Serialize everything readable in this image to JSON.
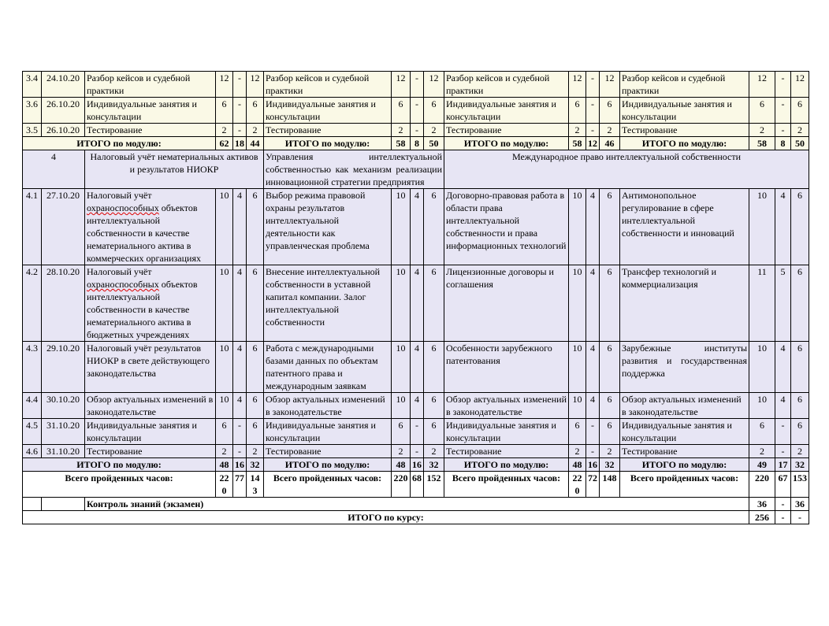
{
  "document": {
    "type": "course-schedule-table",
    "labels": {
      "module_total": "ИТОГО по модулю:",
      "hours_total": "Всего пройденных часов:",
      "exam": "Контроль знаний (экзамен)",
      "course_total": "ИТОГО по курсу:"
    },
    "colors": {
      "cream": "#FAF9E6",
      "lavender": "#E7E5F4",
      "spellcheck": "#DD0000",
      "border": "#000000"
    },
    "module3": {
      "rows": [
        {
          "num": "3.4",
          "date": "24.10.20",
          "groups": [
            {
              "topic": "Разбор кейсов и судебной практики",
              "hours": [
                "12",
                "-",
                "12"
              ]
            },
            {
              "topic": "Разбор кейсов и судебной практики",
              "hours": [
                "12",
                "-",
                "12"
              ]
            },
            {
              "topic": "Разбор кейсов и судебной практики",
              "hours": [
                "12",
                "-",
                "12"
              ]
            },
            {
              "topic": "Разбор кейсов и судебной практики",
              "hours": [
                "12",
                "-",
                "12"
              ]
            }
          ]
        },
        {
          "num": "3.6",
          "date": "26.10.20",
          "groups": [
            {
              "topic": "Индивидуальные занятия и консультации",
              "hours": [
                "6",
                "-",
                "6"
              ]
            },
            {
              "topic": "Индивидуальные занятия и консультации",
              "hours": [
                "6",
                "-",
                "6"
              ]
            },
            {
              "topic": "Индивидуальные занятия и консультации",
              "hours": [
                "6",
                "-",
                "6"
              ]
            },
            {
              "topic": "Индивидуальные занятия и консультации",
              "hours": [
                "6",
                "-",
                "6"
              ]
            }
          ]
        },
        {
          "num": "3.5",
          "date": "26.10.20",
          "groups": [
            {
              "topic": "Тестирование",
              "hours": [
                "2",
                "-",
                "2"
              ]
            },
            {
              "topic": "Тестирование",
              "hours": [
                "2",
                "-",
                "2"
              ]
            },
            {
              "topic": "Тестирование",
              "hours": [
                "2",
                "-",
                "2"
              ]
            },
            {
              "topic": "Тестирование",
              "hours": [
                "2",
                "-",
                "2"
              ]
            }
          ]
        }
      ],
      "totals": [
        [
          "62",
          "18",
          "44"
        ],
        [
          "58",
          "8",
          "50"
        ],
        [
          "58",
          "12",
          "46"
        ],
        [
          "58",
          "8",
          "50"
        ]
      ]
    },
    "module4": {
      "number": "4",
      "titles": [
        {
          "text": "Налоговый учёт нематериальных активов и результатов НИОКР",
          "align": "center"
        },
        {
          "text": "Управления интеллектуальной собственностью как механизм реализации инновационной стратегии предприятия",
          "align": "justify"
        },
        {
          "text": "Международное право интеллектуальной собственности",
          "align": "center"
        }
      ],
      "rows": [
        {
          "num": "4.1",
          "date": "27.10.20",
          "groups": [
            {
              "topic": "Налоговый учёт охраноспособных объектов интеллектуальной собственности в качестве нематериального актива в коммерческих организациях",
              "misspelled": "охраноспособных",
              "hours": [
                "10",
                "4",
                "6"
              ]
            },
            {
              "topic": "Выбор режима правовой охраны результатов интеллектуальной деятельности как управленческая проблема",
              "hours": [
                "10",
                "4",
                "6"
              ]
            },
            {
              "topic": "Договорно-правовая работа в области права интеллектуальной собственности и права информационных технологий",
              "hours": [
                "10",
                "4",
                "6"
              ]
            },
            {
              "topic": "Антимонопольное регулирование в сфере интеллектуальной собственности и инноваций",
              "hours": [
                "10",
                "4",
                "6"
              ]
            }
          ]
        },
        {
          "num": "4.2",
          "date": "28.10.20",
          "groups": [
            {
              "topic": "Налоговый учёт охраноспособных объектов интеллектуальной собственности в качестве нематериального актива в бюджетных учреждениях",
              "misspelled": "охраноспособных",
              "hours": [
                "10",
                "4",
                "6"
              ]
            },
            {
              "topic": "Внесение интеллектуальной собственности в уставной капитал компании. Залог интеллектуальной собственности",
              "hours": [
                "10",
                "4",
                "6"
              ]
            },
            {
              "topic": "Лицензионные договоры и соглашения",
              "hours": [
                "10",
                "4",
                "6"
              ]
            },
            {
              "topic": "Трансфер технологий и коммерциализация",
              "hours": [
                "11",
                "5",
                "6"
              ]
            }
          ]
        },
        {
          "num": "4.3",
          "date": "29.10.20",
          "groups": [
            {
              "topic": "Налоговый учёт результатов НИОКР в свете действующего законодательства",
              "hours": [
                "10",
                "4",
                "6"
              ]
            },
            {
              "topic": "Работа с международными базами данных по объектам патентного права и международным заявкам",
              "hours": [
                "10",
                "4",
                "6"
              ]
            },
            {
              "topic": "Особенности зарубежного патентования",
              "hours": [
                "10",
                "4",
                "6"
              ]
            },
            {
              "topic": "Зарубежные институты развития и государственная поддержка",
              "justify": true,
              "hours": [
                "10",
                "4",
                "6"
              ]
            }
          ]
        },
        {
          "num": "4.4",
          "date": "30.10.20",
          "groups": [
            {
              "topic": "Обзор актуальных изменений в законодательстве",
              "hours": [
                "10",
                "4",
                "6"
              ]
            },
            {
              "topic": "Обзор актуальных изменений в законодательстве",
              "hours": [
                "10",
                "4",
                "6"
              ]
            },
            {
              "topic": "Обзор актуальных изменений в законодательстве",
              "justify": true,
              "hours": [
                "10",
                "4",
                "6"
              ]
            },
            {
              "topic": "Обзор актуальных изменений в законодательстве",
              "hours": [
                "10",
                "4",
                "6"
              ]
            }
          ]
        },
        {
          "num": "4.5",
          "date": "31.10.20",
          "groups": [
            {
              "topic": "Индивидуальные занятия и консультации",
              "hours": [
                "6",
                "-",
                "6"
              ]
            },
            {
              "topic": "Индивидуальные занятия и консультации",
              "hours": [
                "6",
                "-",
                "6"
              ]
            },
            {
              "topic": "Индивидуальные занятия и консультации",
              "hours": [
                "6",
                "-",
                "6"
              ]
            },
            {
              "topic": "Индивидуальные занятия и консультации",
              "hours": [
                "6",
                "-",
                "6"
              ]
            }
          ]
        },
        {
          "num": "4.6",
          "date": "31.10.20",
          "groups": [
            {
              "topic": "Тестирование",
              "hours": [
                "2",
                "-",
                "2"
              ]
            },
            {
              "topic": "Тестирование",
              "hours": [
                "2",
                "-",
                "2"
              ]
            },
            {
              "topic": "Тестирование",
              "hours": [
                "2",
                "-",
                "2"
              ]
            },
            {
              "topic": "Тестирование",
              "hours": [
                "2",
                "-",
                "2"
              ]
            }
          ]
        }
      ],
      "totals": [
        [
          "48",
          "16",
          "32"
        ],
        [
          "48",
          "16",
          "32"
        ],
        [
          "48",
          "16",
          "32"
        ],
        [
          "49",
          "17",
          "32"
        ]
      ]
    },
    "hours_totals": [
      [
        "220",
        "77",
        "143"
      ],
      [
        "220",
        "68",
        "152"
      ],
      [
        "220",
        "72",
        "148"
      ],
      [
        "220",
        "67",
        "153"
      ]
    ],
    "exam_hours": [
      "36",
      "-",
      "36"
    ],
    "course_hours": [
      "256",
      "-",
      "-"
    ]
  }
}
